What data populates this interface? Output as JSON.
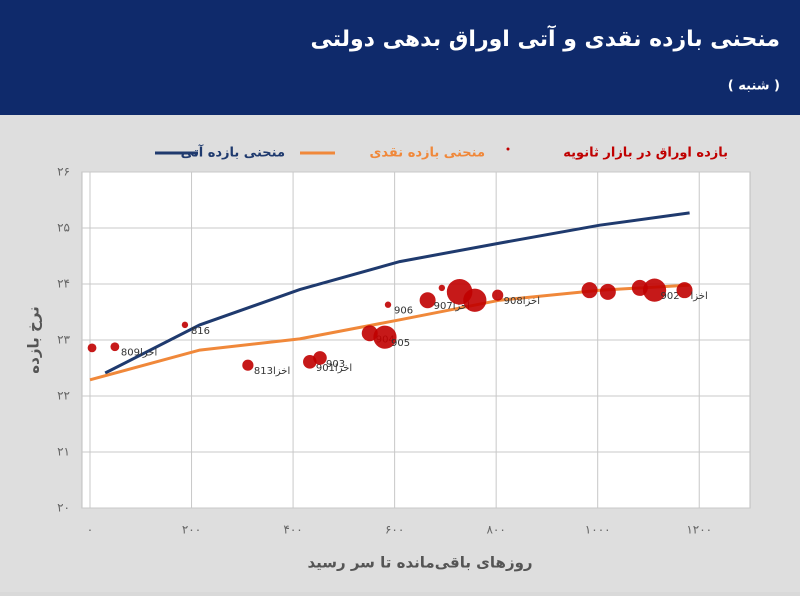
{
  "chart_data": {
    "type": "combo",
    "title": "منحنی بازده نقدی و آتی اوراق بدهی دولتی",
    "subtitle": "( شنبه )",
    "x_label": "روزهای باقی‌مانده تا سر رسید",
    "y_label": "نرخ بازده",
    "xlim": [
      0,
      1300
    ],
    "xticks": [
      {
        "value": 0,
        "label": "۰"
      },
      {
        "value": 200,
        "label": "۲۰۰"
      },
      {
        "value": 400,
        "label": "۴۰۰"
      },
      {
        "value": 600,
        "label": "۶۰۰"
      },
      {
        "value": 800,
        "label": "۸۰۰"
      },
      {
        "value": 1000,
        "label": "۱۰۰۰"
      },
      {
        "value": 1200,
        "label": "۱۲۰۰"
      }
    ],
    "ylim": [
      20,
      26
    ],
    "yticks": [
      {
        "value": 20,
        "label": "۲۰"
      },
      {
        "value": 21,
        "label": "۲۱"
      },
      {
        "value": 22,
        "label": "۲۲"
      },
      {
        "value": 23,
        "label": "۲۳"
      },
      {
        "value": 24,
        "label": "۲۴"
      },
      {
        "value": 25,
        "label": "۲۵"
      },
      {
        "value": 26,
        "label": "۲۶"
      }
    ],
    "grid": true,
    "series": [
      {
        "name": "منحنی بازده آتی",
        "type": "line",
        "color": "#1f3a6e",
        "x": [
          30,
          216,
          413,
          610,
          807,
          1004,
          1181
        ],
        "values": [
          22.41,
          23.27,
          23.9,
          24.4,
          24.73,
          25.05,
          25.27
        ]
      },
      {
        "name": "منحنی بازده نقدی",
        "type": "line",
        "color": "#f0883a",
        "x": [
          0,
          216,
          413,
          610,
          807,
          1004,
          1181
        ],
        "values": [
          22.29,
          22.82,
          23.02,
          23.36,
          23.71,
          23.89,
          23.98
        ]
      },
      {
        "name": "بازده اوراق در بازار ثانویه",
        "type": "bubble",
        "color": "#c00000",
        "x": [
          4,
          49,
          187,
          311,
          433,
          453,
          551,
          581,
          587,
          665,
          693,
          728,
          758,
          803,
          984,
          1020,
          1083,
          1112,
          1171
        ],
        "values": [
          22.86,
          22.88,
          23.27,
          22.55,
          22.61,
          22.68,
          23.12,
          23.05,
          23.63,
          23.71,
          23.93,
          23.86,
          23.71,
          23.8,
          23.89,
          23.86,
          23.93,
          23.89,
          23.89
        ],
        "sizes": [
          2,
          2,
          1,
          3,
          4,
          4,
          5,
          8,
          1,
          5,
          1,
          9,
          8,
          3,
          5,
          5,
          5,
          8,
          5
        ],
        "labels": [
          null,
          "اخزا809",
          "816",
          "اخزا813",
          "اخزا901",
          "903",
          "904",
          "905",
          "906",
          "اخزا907",
          null,
          null,
          null,
          "اخزا908",
          null,
          null,
          null,
          "902",
          "اخزا"
        ]
      }
    ]
  }
}
